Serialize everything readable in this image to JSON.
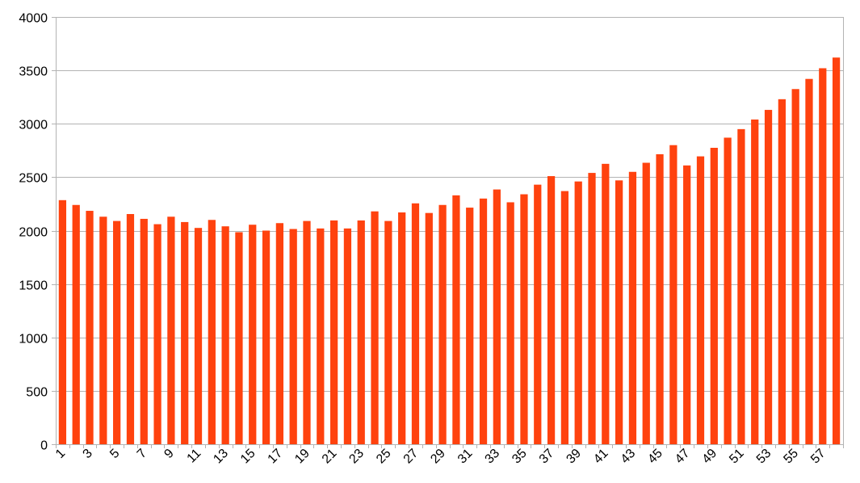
{
  "chart_data": {
    "type": "bar",
    "categories": [
      "1",
      "2",
      "3",
      "4",
      "5",
      "6",
      "7",
      "8",
      "9",
      "10",
      "11",
      "12",
      "13",
      "14",
      "15",
      "16",
      "17",
      "18",
      "19",
      "20",
      "21",
      "22",
      "23",
      "24",
      "25",
      "26",
      "27",
      "28",
      "29",
      "30",
      "31",
      "32",
      "33",
      "34",
      "35",
      "36",
      "37",
      "38",
      "39",
      "40",
      "41",
      "42",
      "43",
      "44",
      "45",
      "46",
      "47",
      "48",
      "49",
      "50",
      "51",
      "52",
      "53",
      "54",
      "55",
      "56",
      "57",
      "58"
    ],
    "tick_labels": [
      "1",
      "3",
      "5",
      "7",
      "9",
      "11",
      "13",
      "15",
      "17",
      "19",
      "21",
      "23",
      "25",
      "27",
      "29",
      "31",
      "33",
      "35",
      "37",
      "39",
      "41",
      "43",
      "45",
      "47",
      "49",
      "51",
      "53",
      "55",
      "57"
    ],
    "values": [
      2285,
      2240,
      2185,
      2130,
      2090,
      2155,
      2110,
      2060,
      2130,
      2080,
      2025,
      2100,
      2040,
      1985,
      2055,
      2000,
      2070,
      2015,
      2090,
      2020,
      2095,
      2020,
      2095,
      2180,
      2090,
      2170,
      2255,
      2165,
      2240,
      2330,
      2215,
      2300,
      2385,
      2265,
      2340,
      2430,
      2510,
      2370,
      2460,
      2540,
      2625,
      2470,
      2550,
      2635,
      2715,
      2800,
      2610,
      2695,
      2775,
      2870,
      2950,
      3040,
      3130,
      3230,
      3325,
      3420,
      3520,
      3620
    ],
    "ylim": [
      0,
      4000
    ],
    "yticks": [
      "0",
      "500",
      "1000",
      "1500",
      "2000",
      "2500",
      "3000",
      "3500",
      "4000"
    ],
    "bar_color": "#ff420e",
    "grid": true,
    "legend": "none",
    "title": "",
    "xlabel": "",
    "ylabel": ""
  }
}
